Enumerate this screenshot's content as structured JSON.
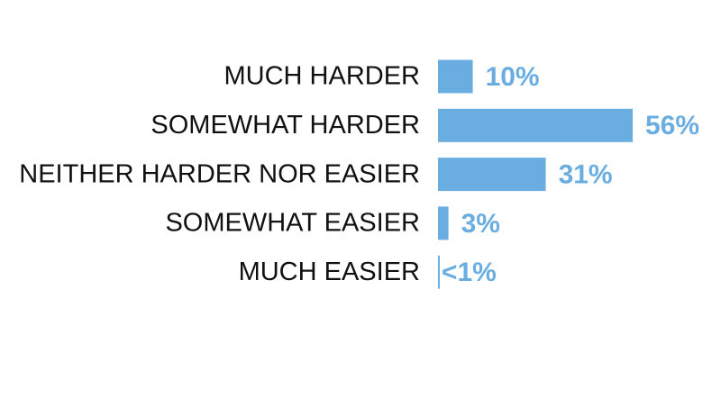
{
  "chart_data": {
    "type": "bar",
    "orientation": "horizontal",
    "categories": [
      "MUCH HARDER",
      "SOMEWHAT HARDER",
      "NEITHER HARDER NOR EASIER",
      "SOMEWHAT EASIER",
      "MUCH EASIER"
    ],
    "values": [
      10,
      56,
      31,
      3,
      0.5
    ],
    "value_labels": [
      "10%",
      "56%",
      "31%",
      "3%",
      "<1%"
    ],
    "color": "#6aade0"
  }
}
